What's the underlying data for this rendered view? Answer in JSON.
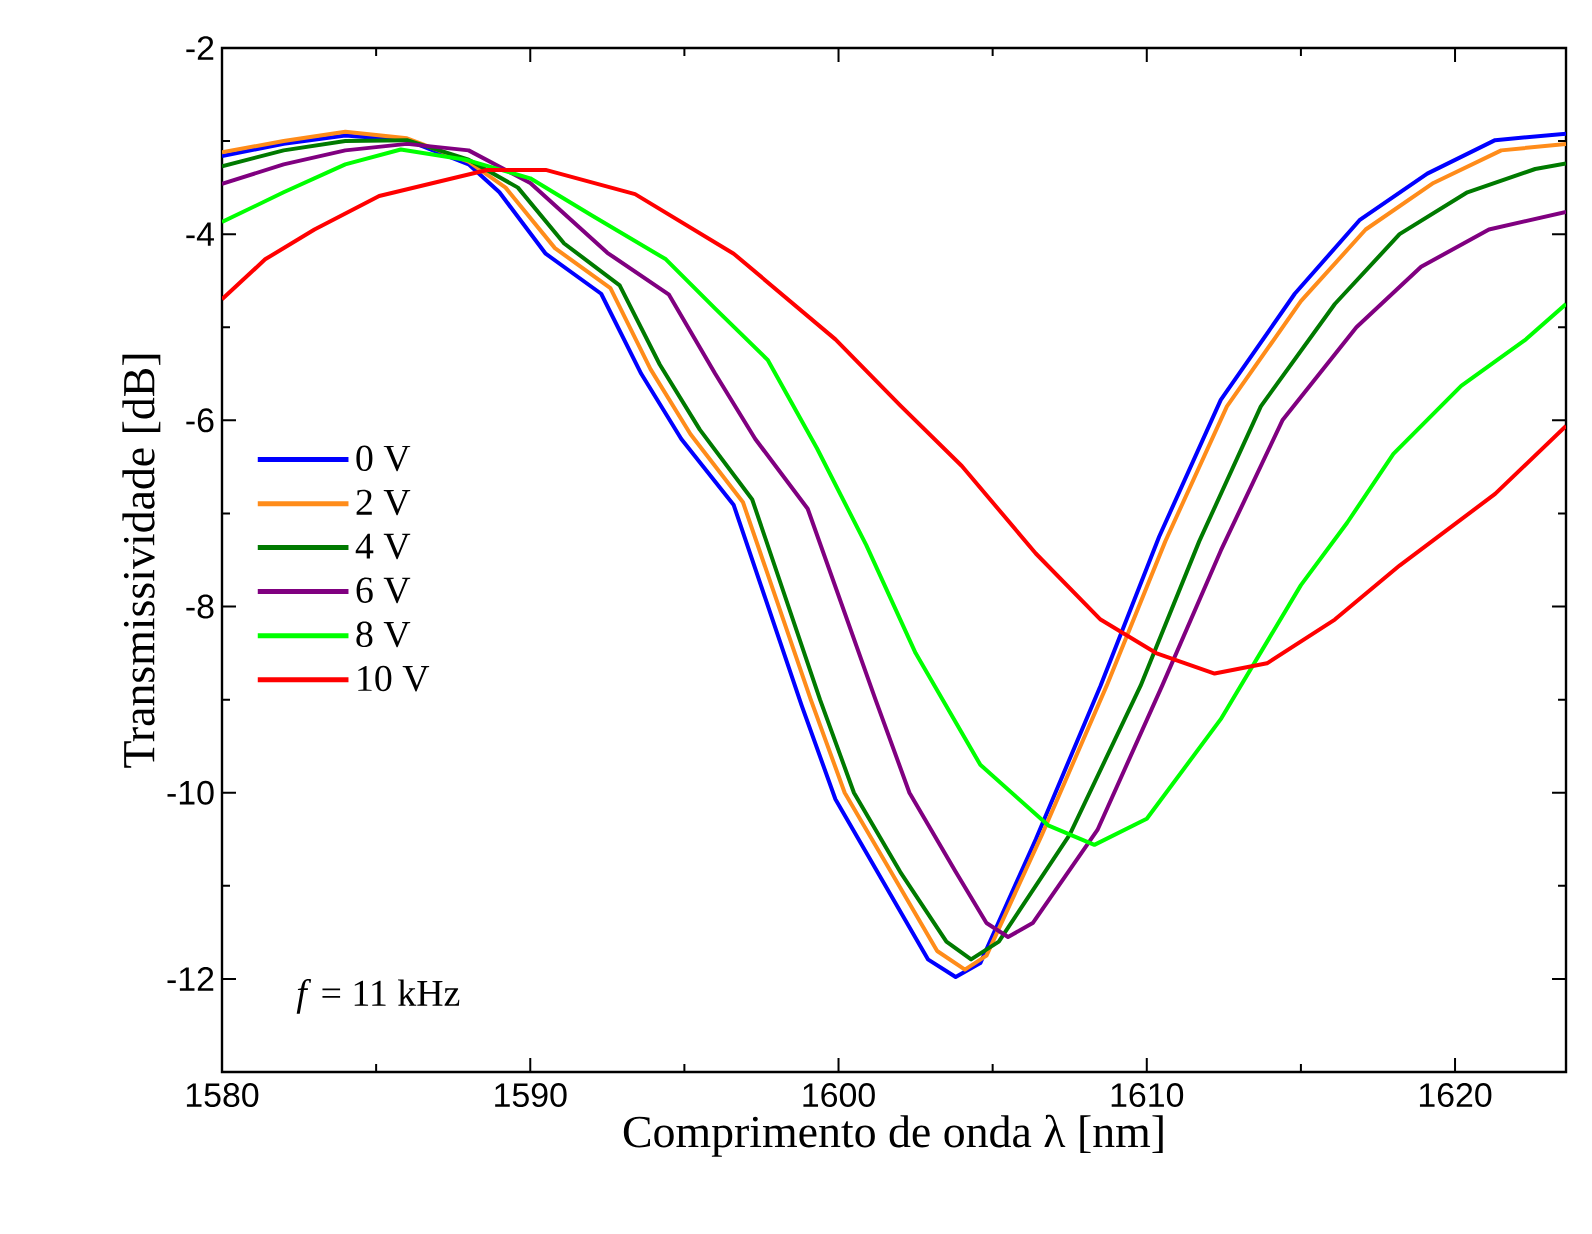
{
  "chart_data": {
    "type": "line",
    "xlabel": "Comprimento de onda λ [nm]",
    "ylabel": "Transmissividade [dB]",
    "xlim": [
      1580,
      1623.6
    ],
    "ylim": [
      -13,
      -2
    ],
    "xticks": [
      1580,
      1590,
      1600,
      1610,
      1620
    ],
    "yticks": [
      -12,
      -10,
      -8,
      -6,
      -4,
      -2
    ],
    "legend": "left",
    "grid": false,
    "line_style": "solid",
    "marker": "none",
    "annotations": [
      "*f* = 11 kHz"
    ],
    "series": [
      {
        "name": "0 V",
        "color": "#0000ff",
        "x": [
          1580,
          1582,
          1584,
          1586,
          1588,
          1589,
          1590.5,
          1592.3,
          1593.6,
          1594.9,
          1596.6,
          1598.8,
          1599.9,
          1601.4,
          1602.9,
          1603.8,
          1604.6,
          1606.4,
          1608.5,
          1610.4,
          1612.4,
          1614.8,
          1616.9,
          1619.1,
          1621.3,
          1623.6
        ],
        "values": [
          -3.16,
          -3.03,
          -2.94,
          -2.99,
          -3.25,
          -3.55,
          -4.21,
          -4.64,
          -5.5,
          -6.2,
          -6.91,
          -9.06,
          -10.07,
          -10.93,
          -11.79,
          -11.98,
          -11.83,
          -10.5,
          -8.85,
          -7.25,
          -5.78,
          -4.64,
          -3.85,
          -3.35,
          -2.99,
          -2.92
        ]
      },
      {
        "name": "2 V",
        "color": "#ff8c1a",
        "x": [
          1580,
          1582,
          1584,
          1586,
          1588,
          1589.2,
          1590.8,
          1592.6,
          1593.9,
          1595.2,
          1596.9,
          1599.1,
          1600.2,
          1601.7,
          1603.2,
          1604.1,
          1604.8,
          1606.6,
          1608.7,
          1610.6,
          1612.6,
          1615,
          1617.1,
          1619.3,
          1621.5,
          1623.6
        ],
        "values": [
          -3.12,
          -3.0,
          -2.9,
          -2.97,
          -3.22,
          -3.5,
          -4.15,
          -4.58,
          -5.45,
          -6.15,
          -6.88,
          -9.0,
          -10.0,
          -10.85,
          -11.7,
          -11.9,
          -11.75,
          -10.45,
          -8.85,
          -7.3,
          -5.85,
          -4.72,
          -3.95,
          -3.45,
          -3.1,
          -3.03
        ]
      },
      {
        "name": "4 V",
        "color": "#007a00",
        "x": [
          1580,
          1582,
          1584,
          1586,
          1588,
          1589.6,
          1591.1,
          1592.9,
          1594.2,
          1595.5,
          1597.2,
          1599.4,
          1600.5,
          1602,
          1603.5,
          1604.3,
          1605.2,
          1607.5,
          1609.8,
          1611.7,
          1613.7,
          1616.1,
          1618.2,
          1620.4,
          1622.6,
          1623.6
        ],
        "values": [
          -3.27,
          -3.1,
          -3.0,
          -2.99,
          -3.2,
          -3.5,
          -4.1,
          -4.55,
          -5.4,
          -6.1,
          -6.85,
          -9.0,
          -10.0,
          -10.85,
          -11.6,
          -11.79,
          -11.6,
          -10.45,
          -8.85,
          -7.3,
          -5.85,
          -4.75,
          -4.0,
          -3.55,
          -3.3,
          -3.24
        ]
      },
      {
        "name": "6 V",
        "color": "#800080",
        "x": [
          1580,
          1582,
          1584,
          1586,
          1588,
          1590,
          1592.5,
          1594.5,
          1596,
          1597.3,
          1599,
          1601.2,
          1602.3,
          1603.8,
          1604.8,
          1605.5,
          1606.3,
          1608.4,
          1610.5,
          1612.4,
          1614.4,
          1616.8,
          1618.9,
          1621.1,
          1623.6
        ],
        "values": [
          -3.46,
          -3.25,
          -3.1,
          -3.03,
          -3.1,
          -3.45,
          -4.2,
          -4.65,
          -5.5,
          -6.2,
          -6.95,
          -9.0,
          -10.0,
          -10.85,
          -11.4,
          -11.55,
          -11.4,
          -10.4,
          -8.85,
          -7.4,
          -6.0,
          -5.0,
          -4.35,
          -3.95,
          -3.76
        ]
      },
      {
        "name": "8 V",
        "color": "#00ff00",
        "x": [
          1580,
          1582,
          1584,
          1585.8,
          1587.9,
          1590,
          1592,
          1594.4,
          1596,
          1597.7,
          1599.3,
          1600.9,
          1602.5,
          1604.6,
          1606.8,
          1608.3,
          1610,
          1612.4,
          1615,
          1616.5,
          1618,
          1620.2,
          1622.3,
          1623.6
        ],
        "values": [
          -3.87,
          -3.55,
          -3.25,
          -3.09,
          -3.2,
          -3.4,
          -3.8,
          -4.27,
          -4.8,
          -5.35,
          -6.3,
          -7.34,
          -8.5,
          -9.7,
          -10.35,
          -10.56,
          -10.28,
          -9.21,
          -7.77,
          -7.1,
          -6.36,
          -5.63,
          -5.13,
          -4.75
        ]
      },
      {
        "name": "10 V",
        "color": "#ff0000",
        "x": [
          1580,
          1581.4,
          1583,
          1585.1,
          1588.6,
          1590.5,
          1593.4,
          1596.6,
          1599.9,
          1602,
          1604,
          1606.4,
          1608.5,
          1610.3,
          1612.2,
          1613.9,
          1616.1,
          1618.2,
          1621.3,
          1623.6
        ],
        "values": [
          -4.7,
          -4.27,
          -3.95,
          -3.59,
          -3.31,
          -3.31,
          -3.57,
          -4.21,
          -5.13,
          -5.84,
          -6.49,
          -7.43,
          -8.14,
          -8.5,
          -8.72,
          -8.61,
          -8.14,
          -7.56,
          -6.79,
          -6.06
        ]
      }
    ]
  }
}
